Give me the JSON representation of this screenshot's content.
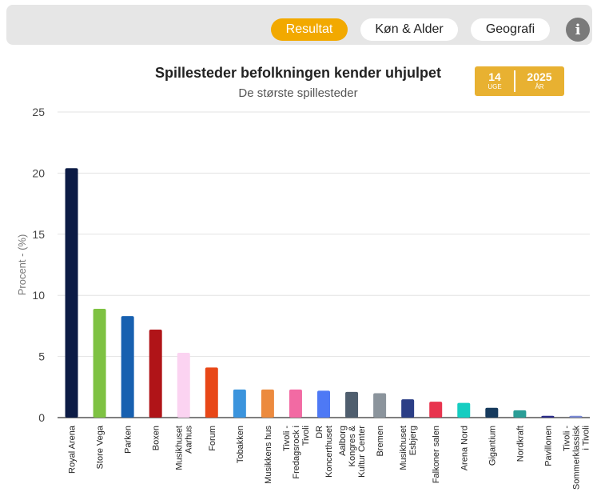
{
  "tabs": [
    {
      "label": "Resultat",
      "active": true
    },
    {
      "label": "Køn & Alder",
      "active": false
    },
    {
      "label": "Geografi",
      "active": false
    }
  ],
  "info_button": {
    "icon": "info-icon",
    "glyph": "i"
  },
  "week_badge": {
    "week": "14",
    "week_label": "UGE",
    "year": "2025",
    "year_label": "ÅR"
  },
  "chart_data": {
    "type": "bar",
    "title": "Spillesteder befolkningen kender uhjulpet",
    "subtitle": "De største spillesteder",
    "ylabel": "Procent - (%)",
    "xlabel": "",
    "ylim": [
      0,
      25
    ],
    "yticks": [
      0,
      5,
      10,
      15,
      20,
      25
    ],
    "grid": true,
    "categories": [
      "Royal Arena",
      "Store Vega",
      "Parken",
      "Boxen",
      "Musikhuset Aarhus",
      "Forum",
      "Tobakken",
      "Musikkens hus",
      "Tivoli - Fredagsrock i Tivoli",
      "DR Koncerthuset",
      "Aalborg Kongres & Kultur Center",
      "Bremen",
      "Musikhuset Esbjerg",
      "Falkoner salen",
      "Arena Nord",
      "Gigantium",
      "Nordkraft",
      "Pavillonen",
      "Tivoli - Sommerklassisk i Tivoli"
    ],
    "category_lines": [
      [
        "Royal Arena"
      ],
      [
        "Store Vega"
      ],
      [
        "Parken"
      ],
      [
        "Boxen"
      ],
      [
        "Musikhuset",
        "Aarhus"
      ],
      [
        "Forum"
      ],
      [
        "Tobakken"
      ],
      [
        "Musikkens hus"
      ],
      [
        "Tivoli -",
        "Fredagsrock i",
        "Tivoli"
      ],
      [
        "DR",
        "Koncerthuset"
      ],
      [
        "Aalborg",
        "Kongres &",
        "Kultur Center"
      ],
      [
        "Bremen"
      ],
      [
        "Musikhuset",
        "Esbjerg"
      ],
      [
        "Falkoner salen"
      ],
      [
        "Arena Nord"
      ],
      [
        "Gigantium"
      ],
      [
        "Nordkraft"
      ],
      [
        "Pavillonen"
      ],
      [
        "Tivoli -",
        "Sommerklassisk",
        "i Tivoli"
      ]
    ],
    "values": [
      20.4,
      8.9,
      8.3,
      7.2,
      5.3,
      4.1,
      2.3,
      2.3,
      2.3,
      2.2,
      2.1,
      2.0,
      1.5,
      1.3,
      1.2,
      0.8,
      0.6,
      0.15,
      0.15
    ],
    "colors": [
      "#0c1b45",
      "#7ec242",
      "#1760b0",
      "#b01418",
      "#fbd3f1",
      "#e84717",
      "#3b94dd",
      "#ec8a3e",
      "#f26aa3",
      "#4e79f5",
      "#4f5e6e",
      "#8b949c",
      "#2b3e86",
      "#e8344e",
      "#15cdc1",
      "#163a5d",
      "#2a9d96",
      "#2d2e8b",
      "#7b8ad6"
    ]
  }
}
